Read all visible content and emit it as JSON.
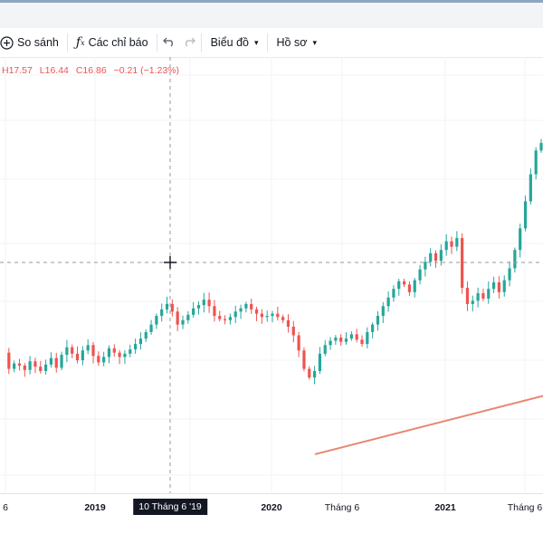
{
  "toolbar": {
    "compare_label": "So sánh",
    "indicators_label": "Các chỉ báo",
    "chart_label": "Biểu đồ",
    "profile_label": "Hồ sơ"
  },
  "ohlc": {
    "high": "H17.57",
    "low": "L16.44",
    "close": "C16.86",
    "change": "−0.21 (−1.23%)"
  },
  "colors": {
    "up": "#26a69a",
    "down": "#ef5350",
    "trendline": "#e8866f",
    "crosshair": "#9598a1"
  },
  "time_axis": {
    "ticks": [
      {
        "label": "6"
      },
      {
        "label": "2019",
        "bold": true
      },
      {
        "label": "2020",
        "bold": true
      },
      {
        "label": "Tháng 6"
      },
      {
        "label": "2021",
        "bold": true
      },
      {
        "label": "Tháng 6"
      }
    ],
    "crosshair_label": "10 Tháng 6 '19"
  },
  "chart_data": {
    "type": "candlestick",
    "title": "",
    "trendline": [
      [
        0,
        2.6
      ],
      [
        1,
        8.0
      ]
    ],
    "price_levels": [
      12,
      10.5,
      11,
      10.8,
      10.4,
      11.2,
      10.7,
      10.3,
      10.9,
      11.5,
      10.6,
      11.8,
      12.5,
      11.9,
      11.3,
      12.2,
      12.7,
      11.7,
      11.1,
      11.6,
      12.4,
      12.0,
      11.6,
      11.9,
      12.3,
      12.8,
      13.3,
      13.9,
      14.6,
      15.4,
      16.0,
      16.5,
      15.8,
      14.6,
      15.0,
      15.5,
      16.1,
      16.4,
      16.9,
      16.3,
      15.4,
      15.1,
      15.0,
      15.3,
      15.8,
      16.1,
      16.5,
      16.0,
      15.6,
      15.3,
      15.4,
      15.6,
      15.3,
      15.0,
      14.4,
      13.6,
      12.2,
      10.5,
      9.7,
      10.3,
      11.9,
      12.7,
      13.1,
      13.4,
      13.0,
      13.3,
      13.7,
      13.2,
      12.8,
      13.9,
      14.6,
      15.4,
      16.3,
      17.1,
      17.9,
      18.6,
      18.3,
      17.6,
      18.7,
      19.7,
      20.4,
      21.2,
      20.5,
      21.5,
      22.3,
      21.8,
      22.6,
      18.0,
      16.5,
      16.8,
      17.5,
      17.0,
      17.9,
      18.5,
      17.6,
      18.7,
      19.8,
      21.5,
      23.5,
      26.0,
      28.5,
      30.7,
      31.4
    ]
  }
}
